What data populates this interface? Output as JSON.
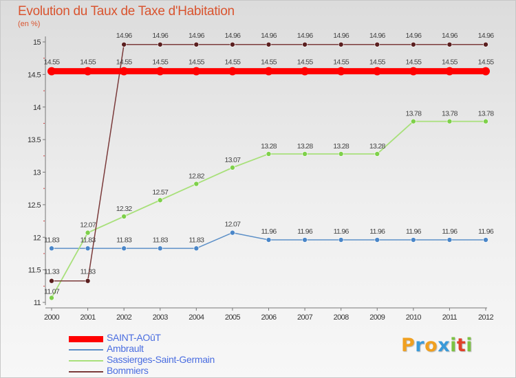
{
  "chart_data": {
    "type": "line",
    "title": "Evolution du Taux de Taxe d'Habitation",
    "unit_label": "(en %)",
    "x": [
      "2000",
      "2001",
      "2002",
      "2003",
      "2004",
      "2005",
      "2006",
      "2007",
      "2008",
      "2009",
      "2010",
      "2011",
      "2012"
    ],
    "ylim": [
      11,
      15
    ],
    "yticks": [
      "11",
      "11.5",
      "12",
      "12.5",
      "13",
      "13.5",
      "14",
      "14.5",
      "15"
    ],
    "grid": false,
    "legend_position": "bottom-left",
    "series": [
      {
        "name": "SAINT-AOûT",
        "color": "#ff0000",
        "values": [
          14.55,
          14.55,
          14.55,
          14.55,
          14.55,
          14.55,
          14.55,
          14.55,
          14.55,
          14.55,
          14.55,
          14.55,
          14.55
        ],
        "labels": [
          "14.55",
          "14.55",
          "14.55",
          "14.55",
          "14.55",
          "14.55",
          "14.55",
          "14.55",
          "14.55",
          "14.55",
          "14.55",
          "14.55",
          "14.55"
        ]
      },
      {
        "name": "Ambrault",
        "color": "#6a9ed0",
        "values": [
          11.83,
          11.83,
          11.83,
          11.83,
          11.83,
          12.07,
          11.96,
          11.96,
          11.96,
          11.96,
          11.96,
          11.96,
          11.96
        ],
        "labels": [
          "11.83",
          "11.83",
          "11.83",
          "11.83",
          "11.83",
          "12.07",
          "11.96",
          "11.96",
          "11.96",
          "11.96",
          "11.96",
          "11.96",
          "11.96"
        ]
      },
      {
        "name": "Sassierges-Saint-Germain",
        "color": "#a8e07a",
        "values": [
          11.07,
          12.07,
          12.32,
          12.57,
          12.82,
          13.07,
          13.28,
          13.28,
          13.28,
          13.28,
          13.78,
          13.78,
          13.78
        ],
        "labels": [
          "11.07",
          "12.07",
          "12.32",
          "12.57",
          "12.82",
          "13.07",
          "13.28",
          "13.28",
          "13.28",
          "13.28",
          "13.78",
          "13.78",
          "13.78"
        ]
      },
      {
        "name": "Bommiers",
        "color": "#7a3a3a",
        "values": [
          11.33,
          11.33,
          14.96,
          14.96,
          14.96,
          14.96,
          14.96,
          14.96,
          14.96,
          14.96,
          14.96,
          14.96,
          14.96
        ],
        "labels": [
          "11.33",
          "11.33",
          "14.96",
          "14.96",
          "14.96",
          "14.96",
          "14.96",
          "14.96",
          "14.96",
          "14.96",
          "14.96",
          "14.96",
          "14.96"
        ]
      }
    ]
  },
  "logo": {
    "letters": [
      "P",
      "r",
      "o",
      "x",
      "i",
      "t",
      "i"
    ],
    "colors": [
      "#f0a020",
      "#3a9ad9",
      "#f0a020",
      "#3a9ad9",
      "#7cc242",
      "#e0402a",
      "#7cc242"
    ],
    "alt": "Proxiti"
  }
}
